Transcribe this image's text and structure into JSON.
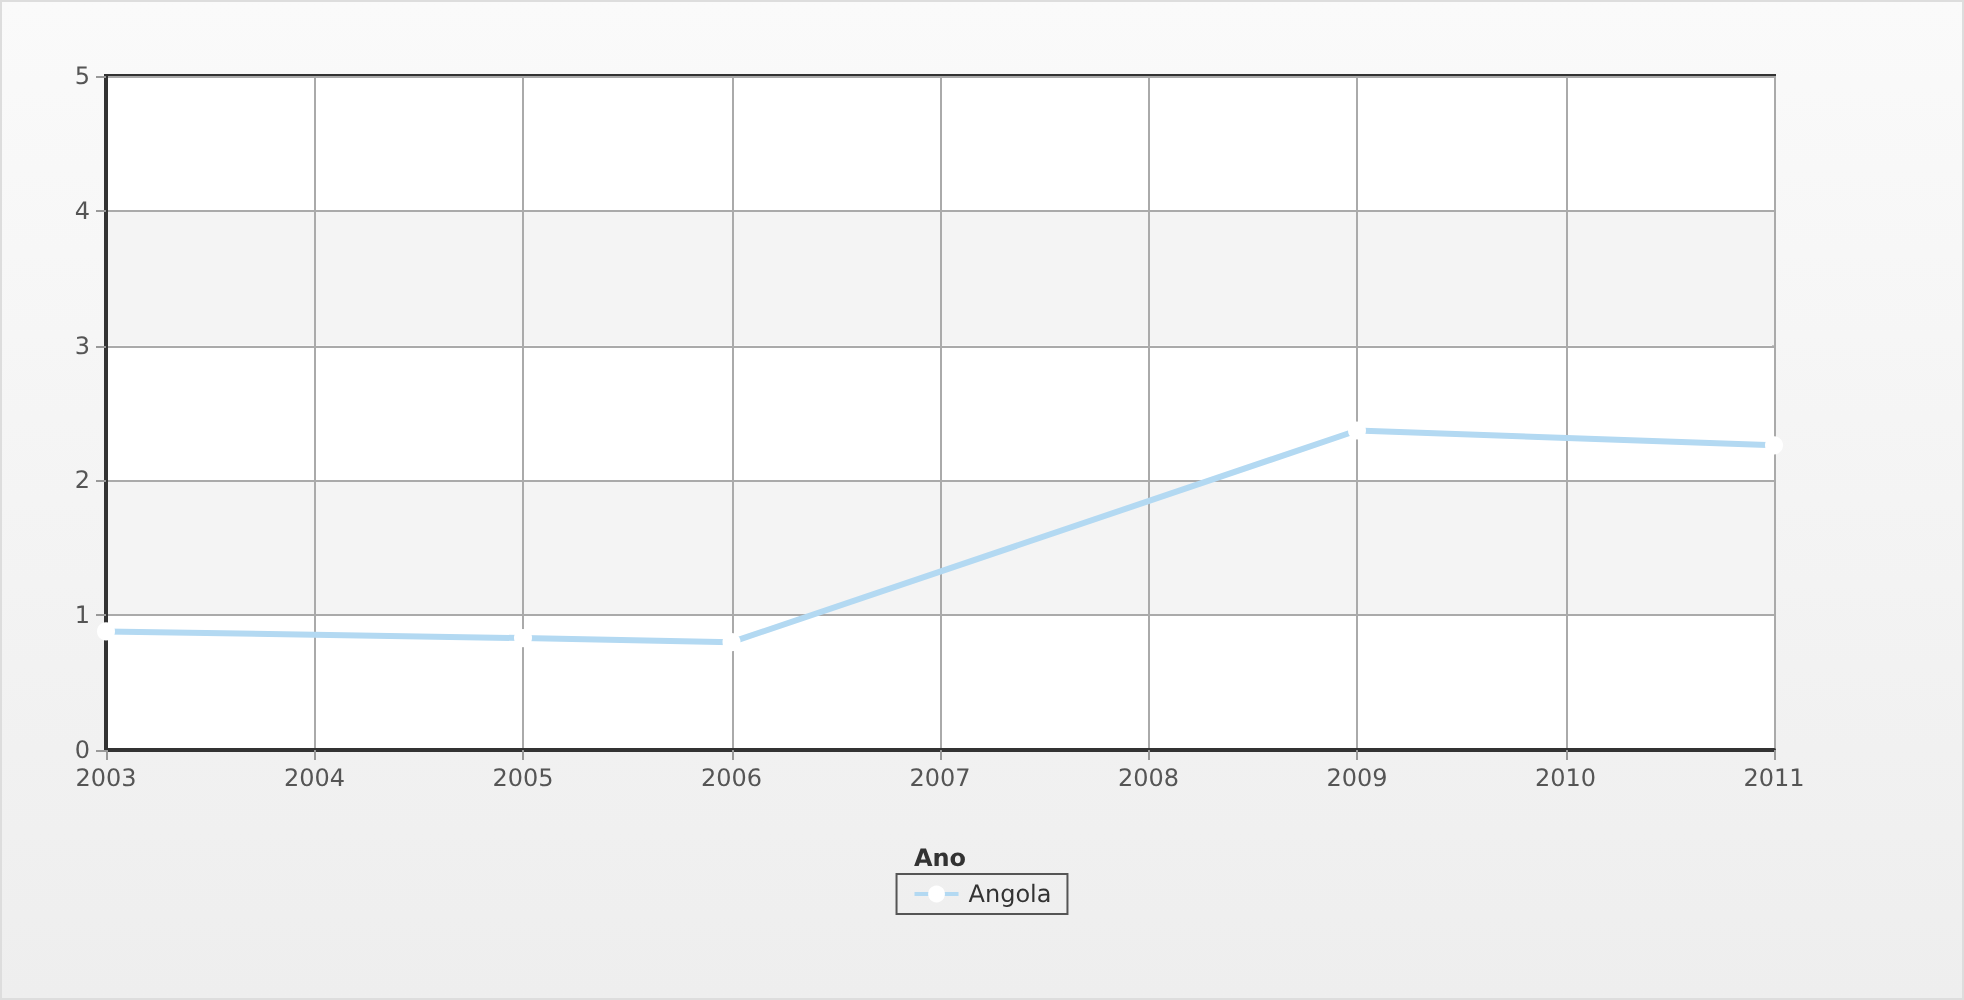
{
  "chart_data": {
    "type": "line",
    "xlabel": "Ano",
    "x": [
      2003,
      2005,
      2006,
      2009,
      2011
    ],
    "series": [
      {
        "name": "Angola",
        "color": "#b3d9f2",
        "values": [
          0.88,
          0.83,
          0.8,
          2.37,
          2.26
        ]
      }
    ],
    "xlim": [
      2003,
      2011
    ],
    "xticks": [
      2003,
      2004,
      2005,
      2006,
      2007,
      2008,
      2009,
      2010,
      2011
    ],
    "ylim": [
      0,
      5
    ],
    "yticks": [
      0,
      1,
      2,
      3,
      4,
      5
    ],
    "grid": true,
    "legend": "bottom",
    "marker": "circle",
    "line_style": "solid"
  }
}
